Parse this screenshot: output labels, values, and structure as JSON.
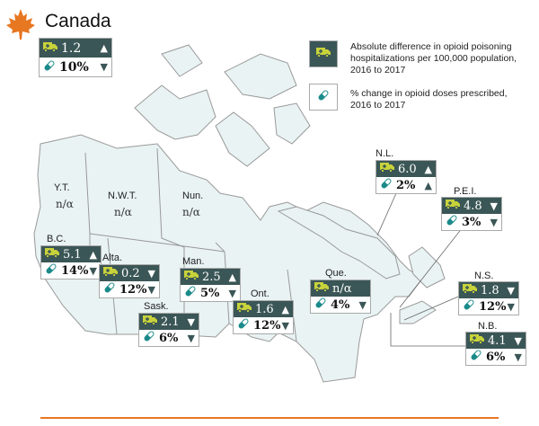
{
  "title": "Canada",
  "colors": {
    "accent": "#e87722",
    "badge_dark": "#3b5656",
    "ambulance": "#c8d23a",
    "pill": "#1a8a8a",
    "land": "#e9f3f3"
  },
  "legend": [
    {
      "icon": "ambulance-icon",
      "text": "Absolute difference in opioid poisoning hospitalizations per 100,000 population, 2016 to 2017"
    },
    {
      "icon": "pill-icon",
      "text": "% change in opioid doses prescribed, 2016 to 2017"
    }
  ],
  "canada": {
    "hosp": "1.2",
    "hosp_dir": "up",
    "doses": "10%",
    "doses_dir": "down"
  },
  "territories": [
    {
      "label": "Y.T.",
      "value": "n/α"
    },
    {
      "label": "N.W.T.",
      "value": "n/α"
    },
    {
      "label": "Nun.",
      "value": "n/α"
    }
  ],
  "provinces": [
    {
      "label": "B.C.",
      "hosp": "5.1",
      "hosp_dir": "up",
      "doses": "14%",
      "doses_dir": "down"
    },
    {
      "label": "Alta.",
      "hosp": "0.2",
      "hosp_dir": "down",
      "doses": "12%",
      "doses_dir": "down"
    },
    {
      "label": "Sask.",
      "hosp": "2.1",
      "hosp_dir": "down",
      "doses": "6%",
      "doses_dir": "down"
    },
    {
      "label": "Man.",
      "hosp": "2.5",
      "hosp_dir": "up",
      "doses": "5%",
      "doses_dir": "down"
    },
    {
      "label": "Ont.",
      "hosp": "1.6",
      "hosp_dir": "up",
      "doses": "12%",
      "doses_dir": "down"
    },
    {
      "label": "Que.",
      "hosp": "n/α",
      "hosp_dir": "",
      "doses": "4%",
      "doses_dir": "down"
    },
    {
      "label": "N.L.",
      "hosp": "6.0",
      "hosp_dir": "up",
      "doses": "2%",
      "doses_dir": "up"
    },
    {
      "label": "P.E.I.",
      "hosp": "4.8",
      "hosp_dir": "down",
      "doses": "3%",
      "doses_dir": "down"
    },
    {
      "label": "N.S.",
      "hosp": "1.8",
      "hosp_dir": "down",
      "doses": "12%",
      "doses_dir": "down"
    },
    {
      "label": "N.B.",
      "hosp": "4.1",
      "hosp_dir": "down",
      "doses": "6%",
      "doses_dir": "down"
    }
  ]
}
